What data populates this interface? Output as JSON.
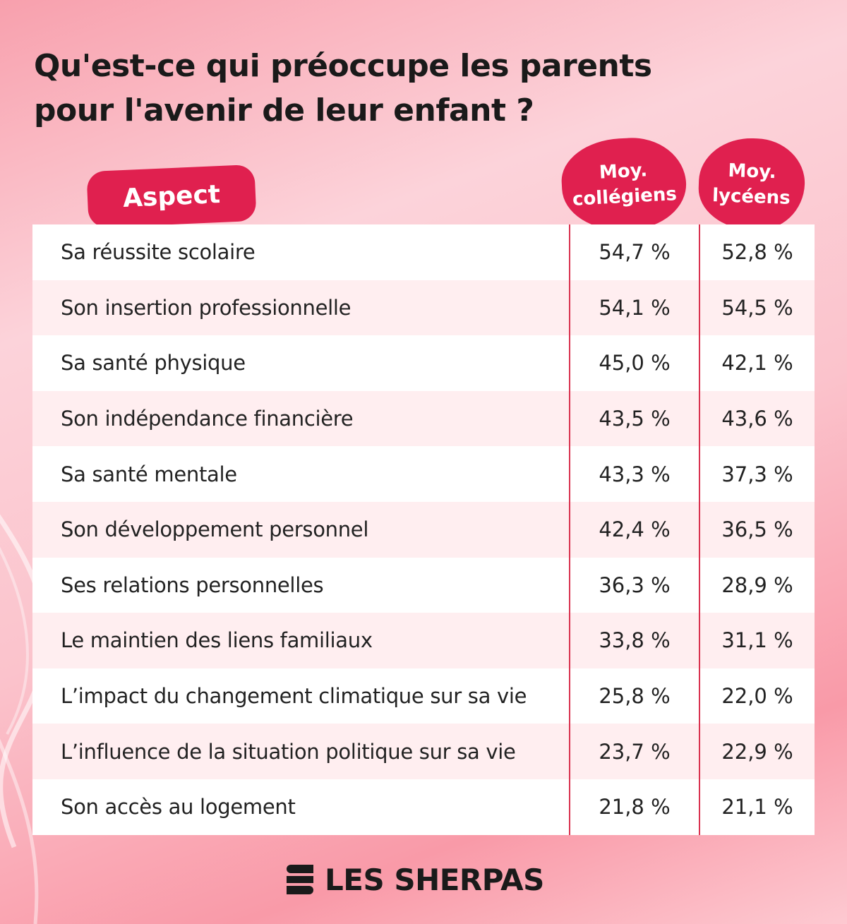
{
  "title": "Qu'est-ce qui préoccupe les parents pour l'avenir de leur enfant ?",
  "headers": {
    "aspect": "Aspect",
    "col": "Moy. collégiens",
    "lyc": "Moy. lycéens"
  },
  "rows": [
    {
      "aspect": "Sa réussite scolaire",
      "col": "54,7 %",
      "lyc": "52,8 %"
    },
    {
      "aspect": "Son insertion professionnelle",
      "col": "54,1 %",
      "lyc": "54,5 %"
    },
    {
      "aspect": "Sa santé physique",
      "col": "45,0 %",
      "lyc": "42,1 %"
    },
    {
      "aspect": "Son indépendance financière",
      "col": "43,5 %",
      "lyc": "43,6 %"
    },
    {
      "aspect": "Sa santé mentale",
      "col": "43,3 %",
      "lyc": "37,3 %"
    },
    {
      "aspect": "Son développement personnel",
      "col": "42,4 %",
      "lyc": "36,5 %"
    },
    {
      "aspect": "Ses relations personnelles",
      "col": "36,3 %",
      "lyc": "28,9 %"
    },
    {
      "aspect": "Le maintien des liens familiaux",
      "col": "33,8 %",
      "lyc": "31,1 %"
    },
    {
      "aspect": "L’impact du changement climatique sur sa vie",
      "col": "25,8 %",
      "lyc": "22,0 %"
    },
    {
      "aspect": "L’influence de la situation politique sur sa vie",
      "col": "23,7 %",
      "lyc": "22,9 %"
    },
    {
      "aspect": "Son accès au logement",
      "col": "21,8 %",
      "lyc": "21,1 %"
    }
  ],
  "brand": "LES SHERPAS",
  "colors": {
    "accent": "#e0204f",
    "row_alt": "#ffeef0",
    "background": "#fbc3cc"
  },
  "chart_data": {
    "type": "table",
    "title": "Qu'est-ce qui préoccupe les parents pour l'avenir de leur enfant ?",
    "columns": [
      "Aspect",
      "Moy. collégiens",
      "Moy. lycéens"
    ],
    "categories": [
      "Sa réussite scolaire",
      "Son insertion professionnelle",
      "Sa santé physique",
      "Son indépendance financière",
      "Sa santé mentale",
      "Son développement personnel",
      "Ses relations personnelles",
      "Le maintien des liens familiaux",
      "L’impact du changement climatique sur sa vie",
      "L’influence de la situation politique sur sa vie",
      "Son accès au logement"
    ],
    "series": [
      {
        "name": "Moy. collégiens",
        "values": [
          54.7,
          54.1,
          45.0,
          43.5,
          43.3,
          42.4,
          36.3,
          33.8,
          25.8,
          23.7,
          21.8
        ]
      },
      {
        "name": "Moy. lycéens",
        "values": [
          52.8,
          54.5,
          42.1,
          43.6,
          37.3,
          36.5,
          28.9,
          31.1,
          22.0,
          22.9,
          21.1
        ]
      }
    ],
    "unit": "%"
  }
}
